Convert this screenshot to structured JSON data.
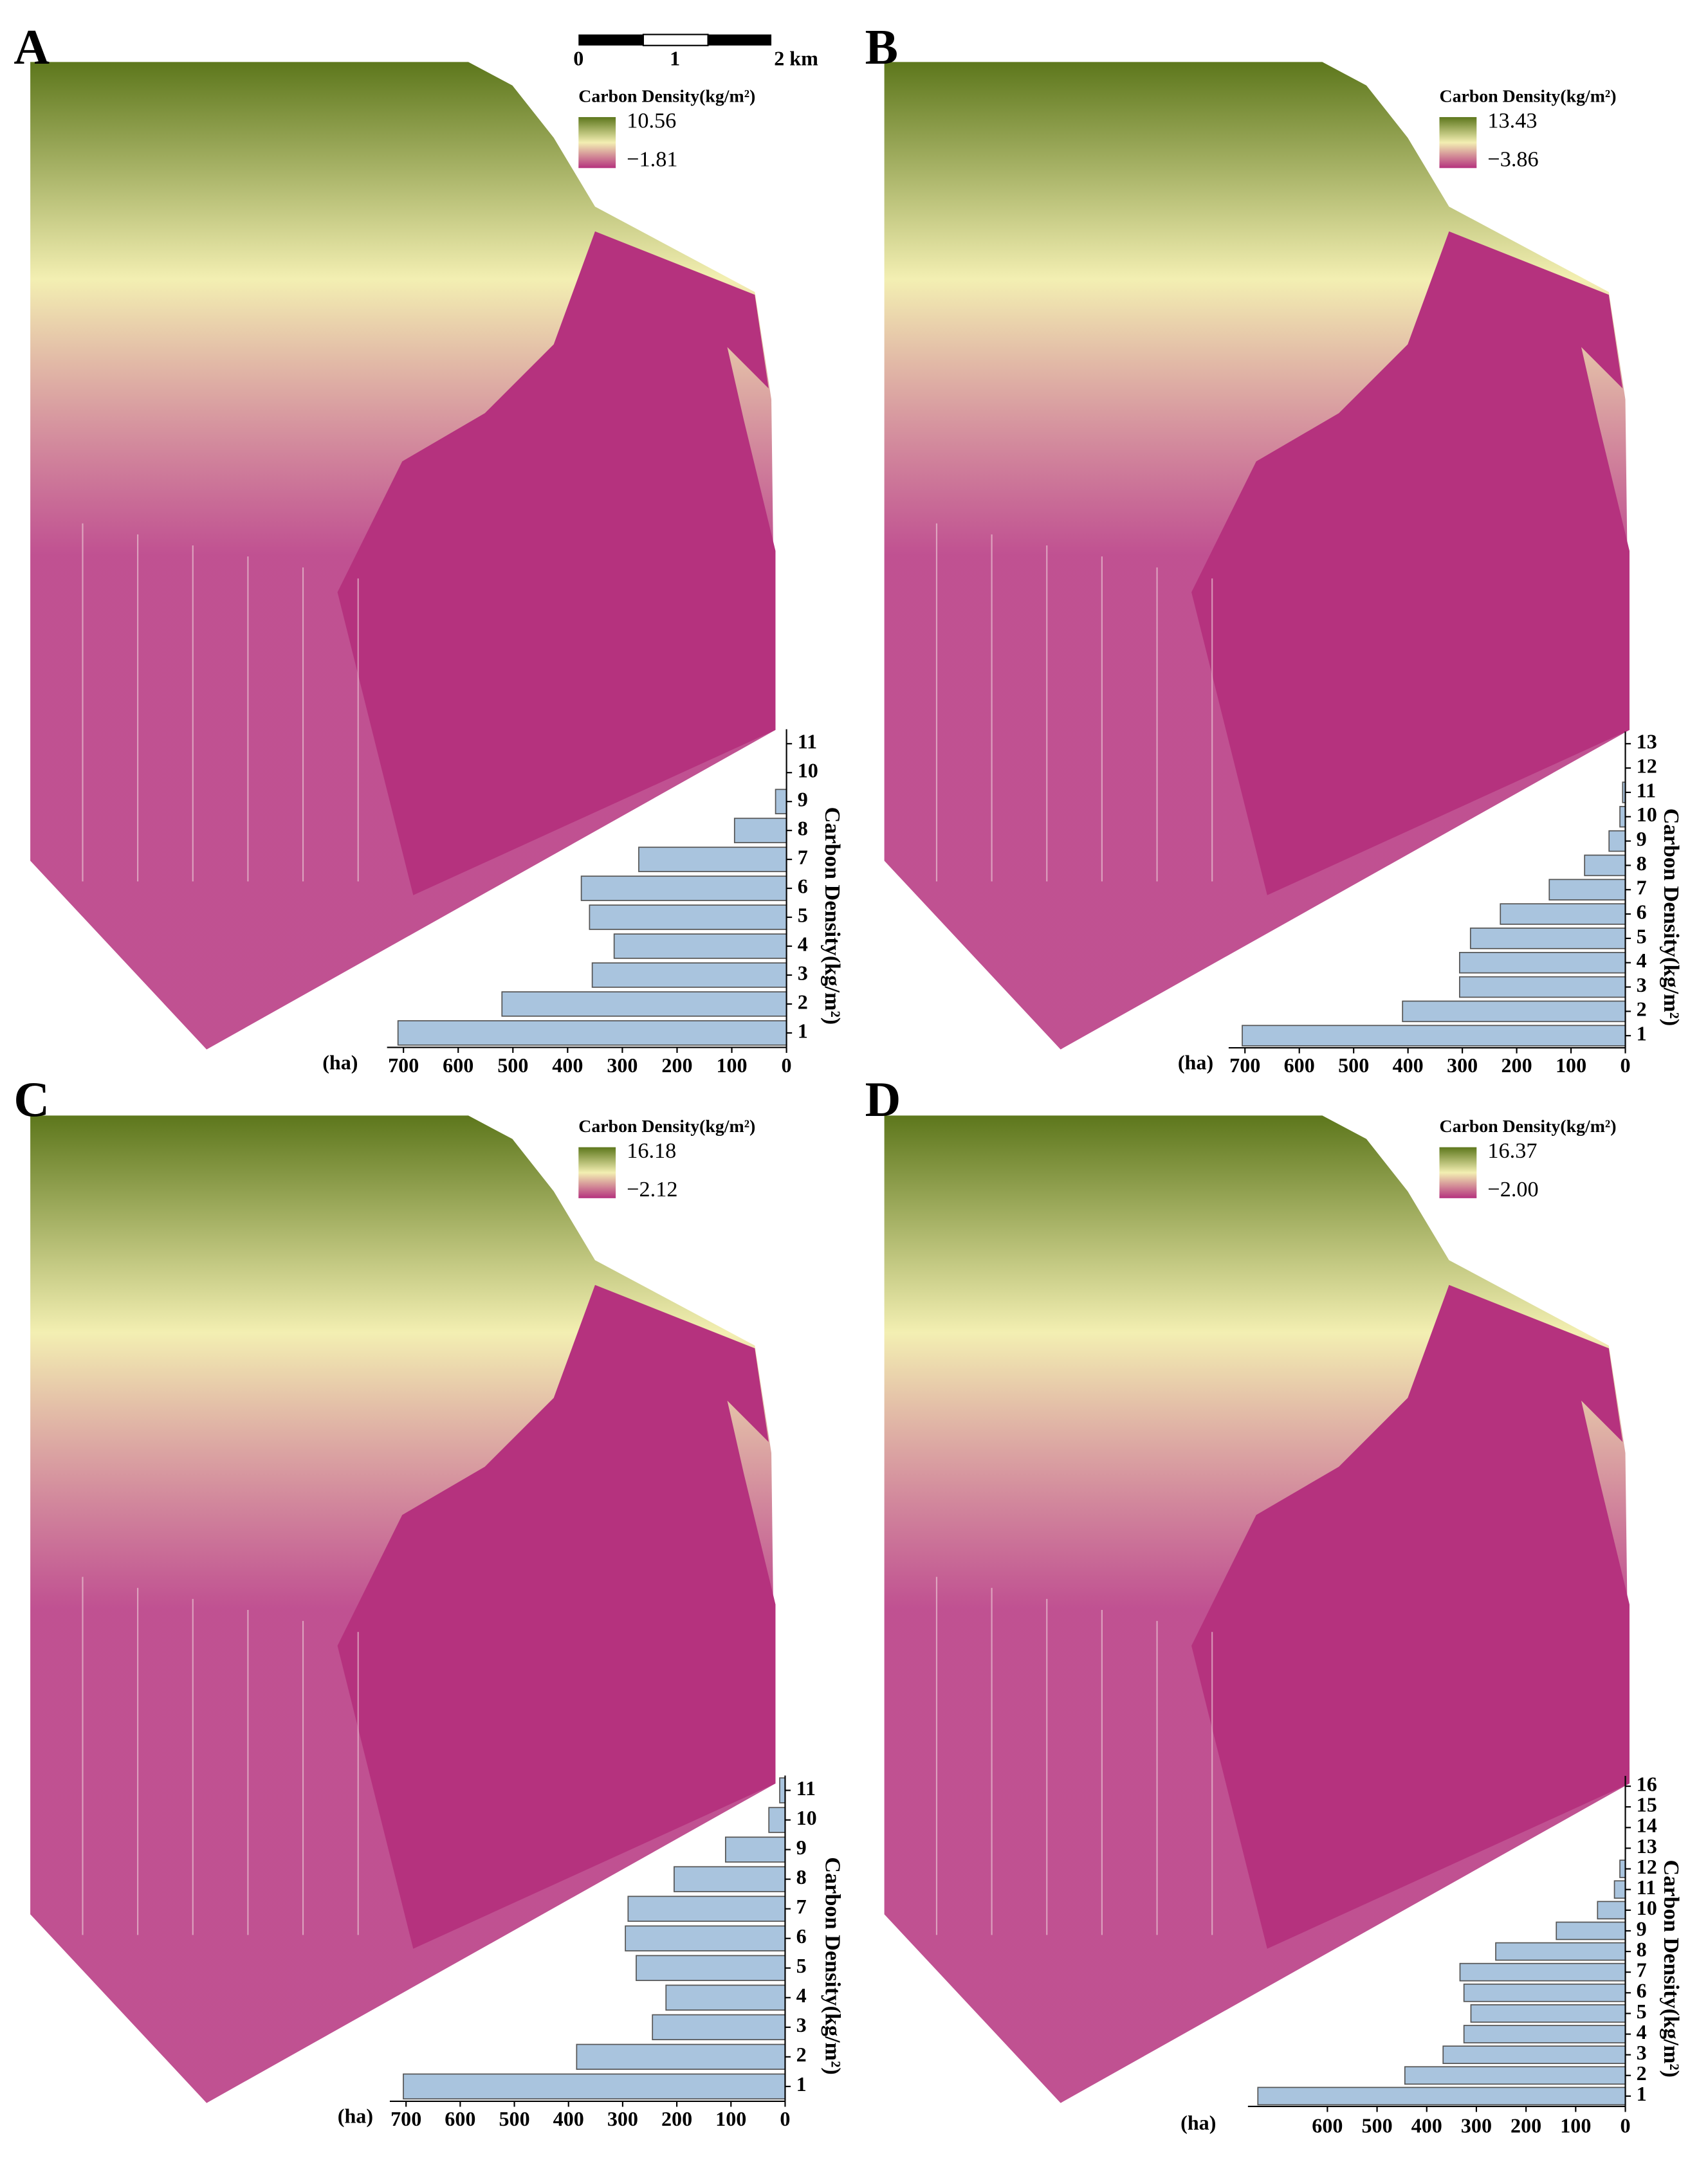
{
  "scale_bar": {
    "ticks": [
      0,
      1,
      {
        "value": 2,
        "label": "2 km"
      }
    ]
  },
  "chart_data": [
    {
      "type": "bar",
      "orientation": "horizontal",
      "panel": "A",
      "legend_title": "Carbon Density(kg/m²)",
      "colorbar": {
        "max": 10.56,
        "min": {
          "value": -1.81,
          "label": "−1.81"
        }
      },
      "colormap": [
        "#5d771c",
        "#f3efb2",
        "#b5327e"
      ],
      "y_label": "Carbon Density(kg/m²)",
      "x_label": "(ha)",
      "categories": [
        1,
        2,
        3,
        4,
        5,
        6,
        7,
        8,
        9,
        10,
        11
      ],
      "values": [
        710,
        520,
        355,
        315,
        360,
        375,
        270,
        95,
        20,
        0,
        0
      ],
      "color": "#a9c4de",
      "xlim": [
        0,
        730
      ],
      "xticks": [
        0,
        100,
        200,
        300,
        400,
        500,
        600,
        700
      ]
    },
    {
      "type": "bar",
      "orientation": "horizontal",
      "panel": "B",
      "legend_title": "Carbon Density(kg/m²)",
      "colorbar": {
        "max": 13.43,
        "min": {
          "value": -3.86,
          "label": "−3.86"
        }
      },
      "colormap": [
        "#5d771c",
        "#f3efb2",
        "#b5327e"
      ],
      "y_label": "Carbon Density(kg/m²)",
      "x_label": "(ha)",
      "categories": [
        1,
        2,
        3,
        4,
        5,
        6,
        7,
        8,
        9,
        10,
        11,
        12,
        13
      ],
      "values": [
        705,
        410,
        305,
        305,
        285,
        230,
        140,
        75,
        30,
        10,
        5,
        0,
        0
      ],
      "color": "#a9c4de",
      "xlim": [
        0,
        730
      ],
      "xticks": [
        0,
        100,
        200,
        300,
        400,
        500,
        600,
        700
      ]
    },
    {
      "type": "bar",
      "orientation": "horizontal",
      "panel": "C",
      "legend_title": "Carbon Density(kg/m²)",
      "colorbar": {
        "max": 16.18,
        "min": {
          "value": -2.12,
          "label": "−2.12"
        }
      },
      "colormap": [
        "#5d771c",
        "#f3efb2",
        "#b5327e"
      ],
      "y_label": "Carbon Density(kg/m²)",
      "x_label": "(ha)",
      "categories": [
        1,
        2,
        3,
        4,
        5,
        6,
        7,
        8,
        9,
        10,
        11
      ],
      "values": [
        705,
        385,
        245,
        220,
        275,
        295,
        290,
        205,
        110,
        30,
        10
      ],
      "color": "#a9c4de",
      "xlim": [
        0,
        730
      ],
      "xticks": [
        0,
        100,
        200,
        300,
        400,
        500,
        600,
        700
      ]
    },
    {
      "type": "bar",
      "orientation": "horizontal",
      "panel": "D",
      "legend_title": "Carbon Density(kg/m²)",
      "colorbar": {
        "max": 16.37,
        "min": {
          "value": -2.0,
          "label": "−2.00"
        }
      },
      "colormap": [
        "#5d771c",
        "#f3efb2",
        "#b5327e"
      ],
      "y_label": "Carbon Density(kg/m²)",
      "x_label": "(ha)",
      "categories": [
        1,
        2,
        3,
        4,
        5,
        6,
        7,
        8,
        9,
        10,
        11,
        12,
        13,
        14,
        15,
        16
      ],
      "values": [
        740,
        444,
        367,
        325,
        311,
        325,
        333,
        261,
        139,
        56,
        22,
        11,
        0,
        0,
        0,
        0
      ],
      "color": "#a9c4de",
      "xlim": [
        0,
        760
      ],
      "xticks": [
        0,
        100,
        200,
        300,
        400,
        500,
        600
      ]
    }
  ]
}
